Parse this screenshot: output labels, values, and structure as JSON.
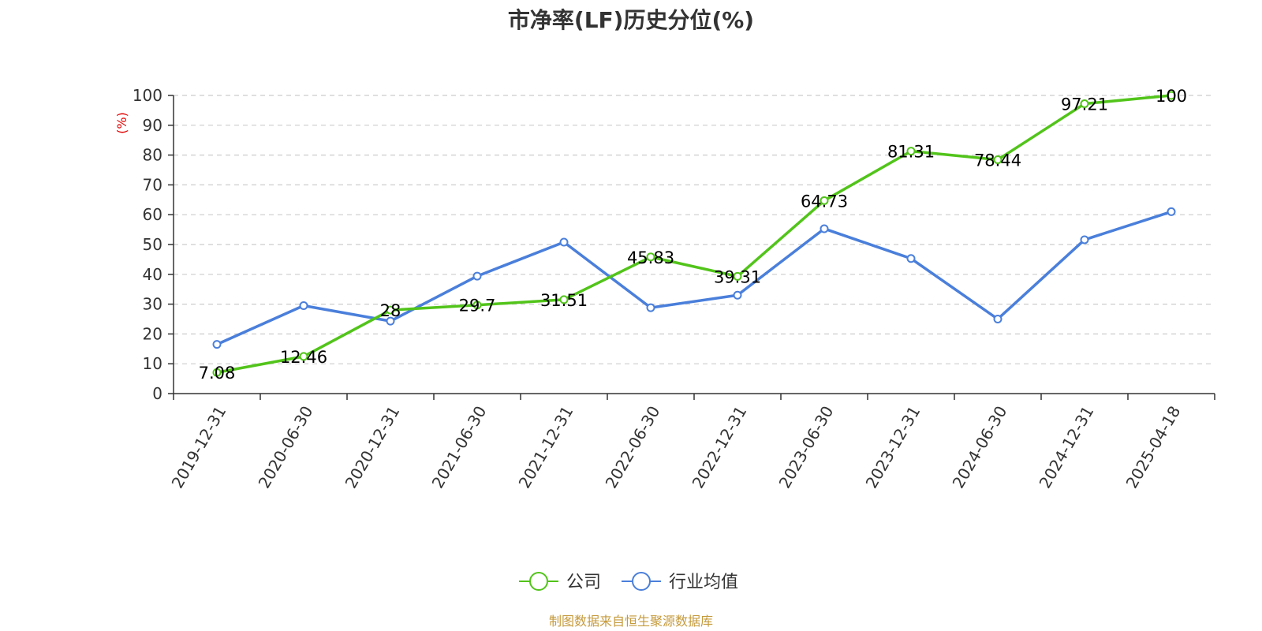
{
  "chart_data": {
    "type": "line",
    "title": "市净率(LF)历史分位(%)",
    "ylabel": "(%)",
    "xlabel": "",
    "ylim": [
      0,
      100
    ],
    "yticks": [
      0,
      10,
      20,
      30,
      40,
      50,
      60,
      70,
      80,
      90,
      100
    ],
    "grid": true,
    "legend_position": "bottom",
    "categories": [
      "2019-12-31",
      "2020-06-30",
      "2020-12-31",
      "2021-06-30",
      "2021-12-31",
      "2022-06-30",
      "2022-12-31",
      "2023-06-30",
      "2023-12-31",
      "2024-06-30",
      "2024-12-31",
      "2025-04-18"
    ],
    "series": [
      {
        "name": "公司",
        "color": "#52c41a",
        "values": [
          7.08,
          12.46,
          28,
          29.7,
          31.51,
          45.83,
          39.31,
          64.73,
          81.31,
          78.44,
          97.21,
          100
        ],
        "labels": [
          "7.08",
          "12.46",
          "28",
          "29.7",
          "31.51",
          "45.83",
          "39.31",
          "64.73",
          "81.31",
          "78.44",
          "97.21",
          "100"
        ]
      },
      {
        "name": "行业均值",
        "color": "#4a7fdb",
        "values": [
          16.5,
          29.5,
          24.3,
          39.4,
          50.8,
          28.8,
          33.0,
          55.3,
          45.3,
          25.0,
          51.6,
          61.0
        ]
      }
    ]
  },
  "source_note": "制图数据来自恒生聚源数据库"
}
